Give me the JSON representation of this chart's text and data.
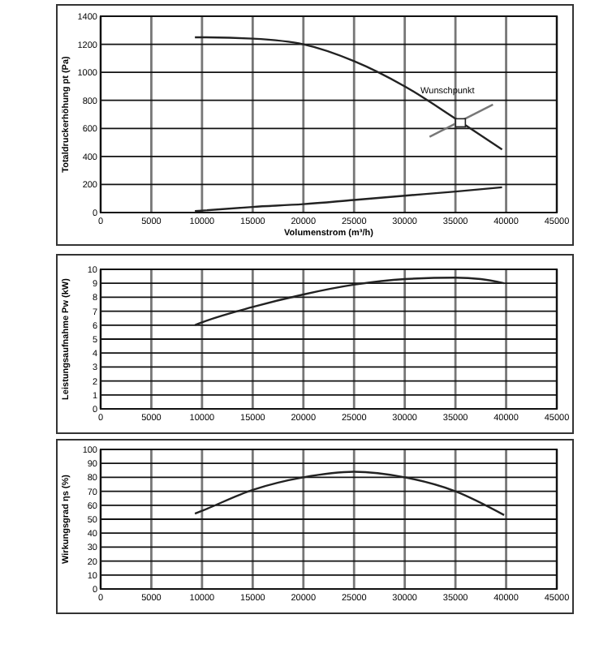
{
  "chart_data": [
    {
      "type": "line",
      "xlabel": "Volumenstrom (m³/h)",
      "ylabel": "Totaldruckerhöhung pt (Pa)",
      "xlim": [
        0,
        45000
      ],
      "ylim": [
        0,
        1400
      ],
      "xticks": [
        0,
        5000,
        10000,
        15000,
        20000,
        25000,
        30000,
        35000,
        40000,
        45000
      ],
      "yticks": [
        0,
        200,
        400,
        600,
        800,
        1000,
        1200,
        1400
      ],
      "grid": true,
      "marker": "none",
      "line_style": "solid",
      "annotations": [
        {
          "text": "Wunschpunkt",
          "x": 35500,
          "y": 640
        }
      ],
      "series": [
        {
          "color": "#222222",
          "x": [
            9300,
            10000,
            15000,
            20000,
            25000,
            30000,
            35000,
            39600
          ],
          "values": [
            1250,
            1250,
            1240,
            1200,
            1080,
            900,
            670,
            450
          ]
        },
        {
          "color": "#222222",
          "x": [
            9300,
            15000,
            20000,
            25000,
            30000,
            35000,
            39600
          ],
          "values": [
            10,
            40,
            60,
            90,
            120,
            150,
            180
          ]
        },
        {
          "color": "#777777",
          "x": [
            32450,
            38700
          ],
          "values": [
            540,
            770
          ]
        },
        {
          "type": "scatter",
          "marker": "square",
          "color": "#222222",
          "x": [
            35500
          ],
          "values": [
            640
          ]
        }
      ]
    },
    {
      "type": "line",
      "ylabel": "Leistungsaufnahme Pw (kW)",
      "xlim": [
        0,
        45000
      ],
      "ylim": [
        0,
        10
      ],
      "xticks": [
        0,
        5000,
        10000,
        15000,
        20000,
        25000,
        30000,
        35000,
        40000,
        45000
      ],
      "yticks": [
        0,
        1,
        2,
        3,
        4,
        5,
        6,
        7,
        8,
        9,
        10
      ],
      "grid": true,
      "marker": "none",
      "line_style": "solid",
      "series": [
        {
          "color": "#222222",
          "x": [
            9300,
            10000,
            15000,
            20000,
            25000,
            30000,
            35000,
            37500,
            39800
          ],
          "values": [
            6.0,
            6.2,
            7.3,
            8.2,
            8.9,
            9.3,
            9.4,
            9.3,
            9.0
          ]
        }
      ]
    },
    {
      "type": "line",
      "ylabel": "Wirkungsgrad ηs (%)",
      "xlim": [
        0,
        45000
      ],
      "ylim": [
        0,
        100
      ],
      "xticks": [
        0,
        5000,
        10000,
        15000,
        20000,
        25000,
        30000,
        35000,
        40000,
        45000
      ],
      "yticks": [
        0,
        10,
        20,
        30,
        40,
        50,
        60,
        70,
        80,
        90,
        100
      ],
      "grid": true,
      "marker": "none",
      "line_style": "solid",
      "series": [
        {
          "color": "#222222",
          "x": [
            9300,
            10000,
            15000,
            20000,
            25000,
            30000,
            35000,
            39800
          ],
          "values": [
            54,
            56,
            71,
            80,
            84,
            80,
            70,
            53
          ]
        }
      ]
    }
  ]
}
